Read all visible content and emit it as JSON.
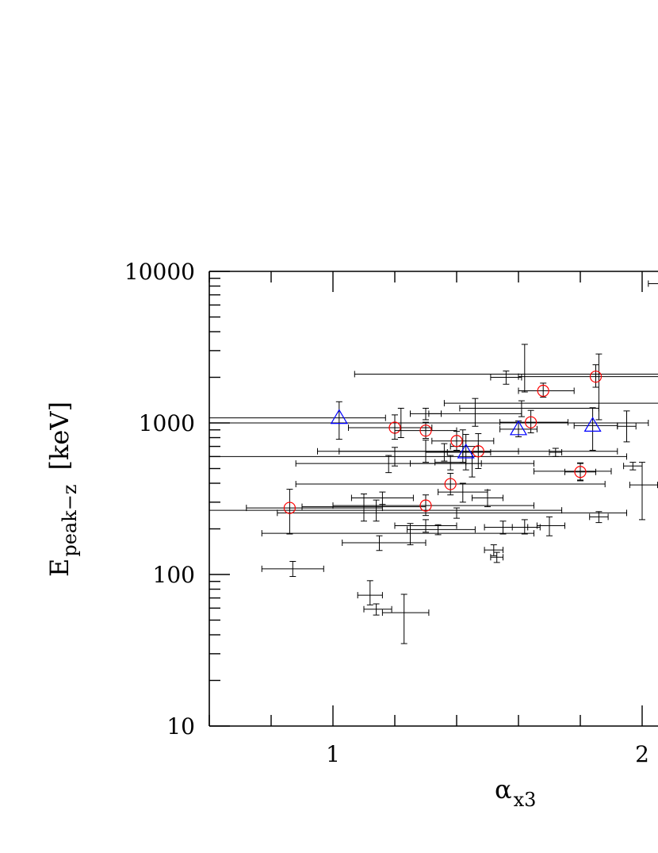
{
  "chart_data": {
    "type": "scatter",
    "title": "",
    "xlabel_main": "α",
    "xlabel_sub": "x3",
    "ylabel_main": "E",
    "ylabel_sub": "peak−z",
    "ylabel_unit": "[keV]",
    "x_scale": "linear",
    "y_scale": "log",
    "xlim": [
      0.6,
      2.05
    ],
    "ylim": [
      10,
      10000
    ],
    "x_tick_labels": [
      {
        "value": 1,
        "label": "1"
      },
      {
        "value": 2,
        "label": "2"
      }
    ],
    "y_tick_labels": [
      {
        "value": 10,
        "label": "10"
      },
      {
        "value": 100,
        "label": "100"
      },
      {
        "value": 1000,
        "label": "1000"
      },
      {
        "value": 10000,
        "label": "10000"
      }
    ],
    "colors": {
      "errorbar": "#000000",
      "circle": "#ff0000",
      "triangle": "#0000ff",
      "axes": "#000000"
    },
    "series": [
      {
        "marker": "errorbar",
        "color": "#000000",
        "points": [
          {
            "x": 0.87,
            "y": 109,
            "xerr": [
              0.1,
              0.1
            ],
            "yerr": [
              12,
              13
            ]
          },
          {
            "x": 1.12,
            "y": 73,
            "xerr": [
              0.04,
              0.04
            ],
            "yerr": [
              10,
              18
            ]
          },
          {
            "x": 1.14,
            "y": 59,
            "xerr": [
              0.04,
              0.05
            ],
            "yerr": [
              5,
              5
            ]
          },
          {
            "x": 1.23,
            "y": 56,
            "xerr": [
              0.07,
              0.08
            ],
            "yerr": [
              21,
              18
            ]
          },
          {
            "x": 1.15,
            "y": 162,
            "xerr": [
              0.12,
              0.15
            ],
            "yerr": [
              18,
              18
            ]
          },
          {
            "x": 1.25,
            "y": 187,
            "xerr": [
              0.48,
              0.4
            ],
            "yerr": [
              30,
              30
            ]
          },
          {
            "x": 1.1,
            "y": 280,
            "xerr": [
              0.2,
              0.2
            ],
            "yerr": [
              55,
              60
            ]
          },
          {
            "x": 1.14,
            "y": 265,
            "xerr": [
              0.6,
              0.6
            ],
            "yerr": [
              40,
              45
            ]
          },
          {
            "x": 1.16,
            "y": 320,
            "xerr": [
              0.1,
              0.1
            ],
            "yerr": [
              30,
              30
            ]
          },
          {
            "x": 1.18,
            "y": 540,
            "xerr": [
              0.3,
              0.3
            ],
            "yerr": [
              70,
              70
            ]
          },
          {
            "x": 1.22,
            "y": 1000,
            "xerr": [
              0.75,
              0.8
            ],
            "yerr": [
              200,
              250
            ]
          },
          {
            "x": 1.2,
            "y": 600,
            "xerr": [
              0.7,
              0.75
            ],
            "yerr": [
              80,
              90
            ]
          },
          {
            "x": 1.3,
            "y": 650,
            "xerr": [
              0.35,
              0.3
            ],
            "yerr": [
              100,
              120
            ]
          },
          {
            "x": 1.3,
            "y": 1150,
            "xerr": [
              0.05,
              0.05
            ],
            "yerr": [
              100,
              100
            ]
          },
          {
            "x": 1.36,
            "y": 640,
            "xerr": [
              0.06,
              0.06
            ],
            "yerr": [
              80,
              90
            ]
          },
          {
            "x": 1.38,
            "y": 550,
            "xerr": [
              0.05,
              0.05
            ],
            "yerr": [
              60,
              60
            ]
          },
          {
            "x": 1.42,
            "y": 700,
            "xerr": [
              0.04,
              0.05
            ],
            "yerr": [
              150,
              200
            ]
          },
          {
            "x": 1.46,
            "y": 1150,
            "xerr": [
              0.15,
              0.15
            ],
            "yerr": [
              200,
              300
            ]
          },
          {
            "x": 1.56,
            "y": 2000,
            "xerr": [
              0.05,
              0.05
            ],
            "yerr": [
              200,
              200
            ]
          },
          {
            "x": 1.62,
            "y": 2100,
            "xerr": [
              0.55,
              0.5
            ],
            "yerr": [
              500,
              1200
            ]
          },
          {
            "x": 1.45,
            "y": 540,
            "xerr": [
              0.2,
              0.2
            ],
            "yerr": [
              100,
              100
            ]
          },
          {
            "x": 1.42,
            "y": 350,
            "xerr": [
              0.08,
              0.08
            ],
            "yerr": [
              50,
              50
            ]
          },
          {
            "x": 1.5,
            "y": 320,
            "xerr": [
              0.05,
              0.05
            ],
            "yerr": [
              40,
              40
            ]
          },
          {
            "x": 1.4,
            "y": 255,
            "xerr": [
              0.58,
              0.55
            ],
            "yerr": [
              20,
              20
            ]
          },
          {
            "x": 1.3,
            "y": 210,
            "xerr": [
              0.1,
              0.1
            ],
            "yerr": [
              20,
              20
            ]
          },
          {
            "x": 1.34,
            "y": 198,
            "xerr": [
              0.1,
              0.12
            ],
            "yerr": [
              15,
              15
            ]
          },
          {
            "x": 1.52,
            "y": 145,
            "xerr": [
              0.03,
              0.03
            ],
            "yerr": [
              12,
              12
            ]
          },
          {
            "x": 1.53,
            "y": 130,
            "xerr": [
              0.02,
              0.02
            ],
            "yerr": [
              10,
              10
            ]
          },
          {
            "x": 1.55,
            "y": 205,
            "xerr": [
              0.06,
              0.08
            ],
            "yerr": [
              20,
              20
            ]
          },
          {
            "x": 1.62,
            "y": 205,
            "xerr": [
              0.04,
              0.05
            ],
            "yerr": [
              20,
              25
            ]
          },
          {
            "x": 1.7,
            "y": 210,
            "xerr": [
              0.04,
              0.05
            ],
            "yerr": [
              30,
              30
            ]
          },
          {
            "x": 1.61,
            "y": 1250,
            "xerr": [
              0.2,
              0.25
            ],
            "yerr": [
              150,
              150
            ]
          },
          {
            "x": 1.72,
            "y": 640,
            "xerr": [
              0.02,
              0.02
            ],
            "yerr": [
              40,
              40
            ]
          },
          {
            "x": 1.8,
            "y": 480,
            "xerr": [
              0.15,
              0.1
            ],
            "yerr": [
              60,
              60
            ]
          },
          {
            "x": 1.86,
            "y": 240,
            "xerr": [
              0.03,
              0.03
            ],
            "yerr": [
              20,
              20
            ]
          },
          {
            "x": 1.95,
            "y": 950,
            "xerr": [
              0.03,
              0.03
            ],
            "yerr": [
              200,
              250
            ]
          },
          {
            "x": 1.97,
            "y": 520,
            "xerr": [
              0.03,
              0.03
            ],
            "yerr": [
              30,
              30
            ]
          },
          {
            "x": 2.0,
            "y": 390,
            "xerr": [
              0.04,
              0.05
            ],
            "yerr": [
              160,
              160
            ]
          },
          {
            "x": 1.86,
            "y": 1350,
            "xerr": [
              0.5,
              0.5
            ],
            "yerr": [
              300,
              1500
            ]
          },
          {
            "x": 2.04,
            "y": 8300,
            "xerr": [
              0.02,
              0.05
            ],
            "yerr": [
              0,
              0
            ]
          }
        ]
      },
      {
        "marker": "circle",
        "color": "#ff0000",
        "points": [
          {
            "x": 0.86,
            "y": 275,
            "xerr": [
              0.14,
              0.3
            ],
            "yerr": [
              90,
              90
            ]
          },
          {
            "x": 1.2,
            "y": 930,
            "xerr": [
              0.15,
              0.12
            ],
            "yerr": [
              150,
              200
            ]
          },
          {
            "x": 1.3,
            "y": 890,
            "xerr": [
              0.1,
              0.1
            ],
            "yerr": [
              100,
              120
            ]
          },
          {
            "x": 1.3,
            "y": 285,
            "xerr": [
              0.3,
              0.35
            ],
            "yerr": [
              40,
              50
            ]
          },
          {
            "x": 1.38,
            "y": 395,
            "xerr": [
              0.5,
              0.5
            ],
            "yerr": [
              60,
              70
            ]
          },
          {
            "x": 1.4,
            "y": 760,
            "xerr": [
              0.08,
              0.12
            ],
            "yerr": [
              100,
              120
            ]
          },
          {
            "x": 1.47,
            "y": 650,
            "xerr": [
              0.45,
              0.45
            ],
            "yerr": [
              150,
              200
            ]
          },
          {
            "x": 1.64,
            "y": 1010,
            "xerr": [
              0.1,
              0.12
            ],
            "yerr": [
              150,
              200
            ]
          },
          {
            "x": 1.68,
            "y": 1630,
            "xerr": [
              0.08,
              0.1
            ],
            "yerr": [
              150,
              200
            ]
          },
          {
            "x": 1.8,
            "y": 475,
            "xerr": [
              0.05,
              0.05
            ],
            "yerr": [
              60,
              70
            ]
          },
          {
            "x": 1.85,
            "y": 2020,
            "xerr": [
              0.25,
              0.3
            ],
            "yerr": [
              300,
              400
            ]
          }
        ]
      },
      {
        "marker": "triangle",
        "color": "#0000ff",
        "points": [
          {
            "x": 1.02,
            "y": 1080,
            "xerr": [
              0.5,
              0.15
            ],
            "yerr": [
              300,
              300
            ]
          },
          {
            "x": 1.43,
            "y": 640,
            "xerr": [
              0.06,
              0.08
            ],
            "yerr": [
              150,
              200
            ]
          },
          {
            "x": 1.6,
            "y": 910,
            "xerr": [
              0.06,
              0.06
            ],
            "yerr": [
              100,
              120
            ]
          },
          {
            "x": 1.84,
            "y": 960,
            "xerr": [
              0.06,
              0.08
            ],
            "yerr": [
              300,
              300
            ]
          }
        ]
      }
    ]
  }
}
